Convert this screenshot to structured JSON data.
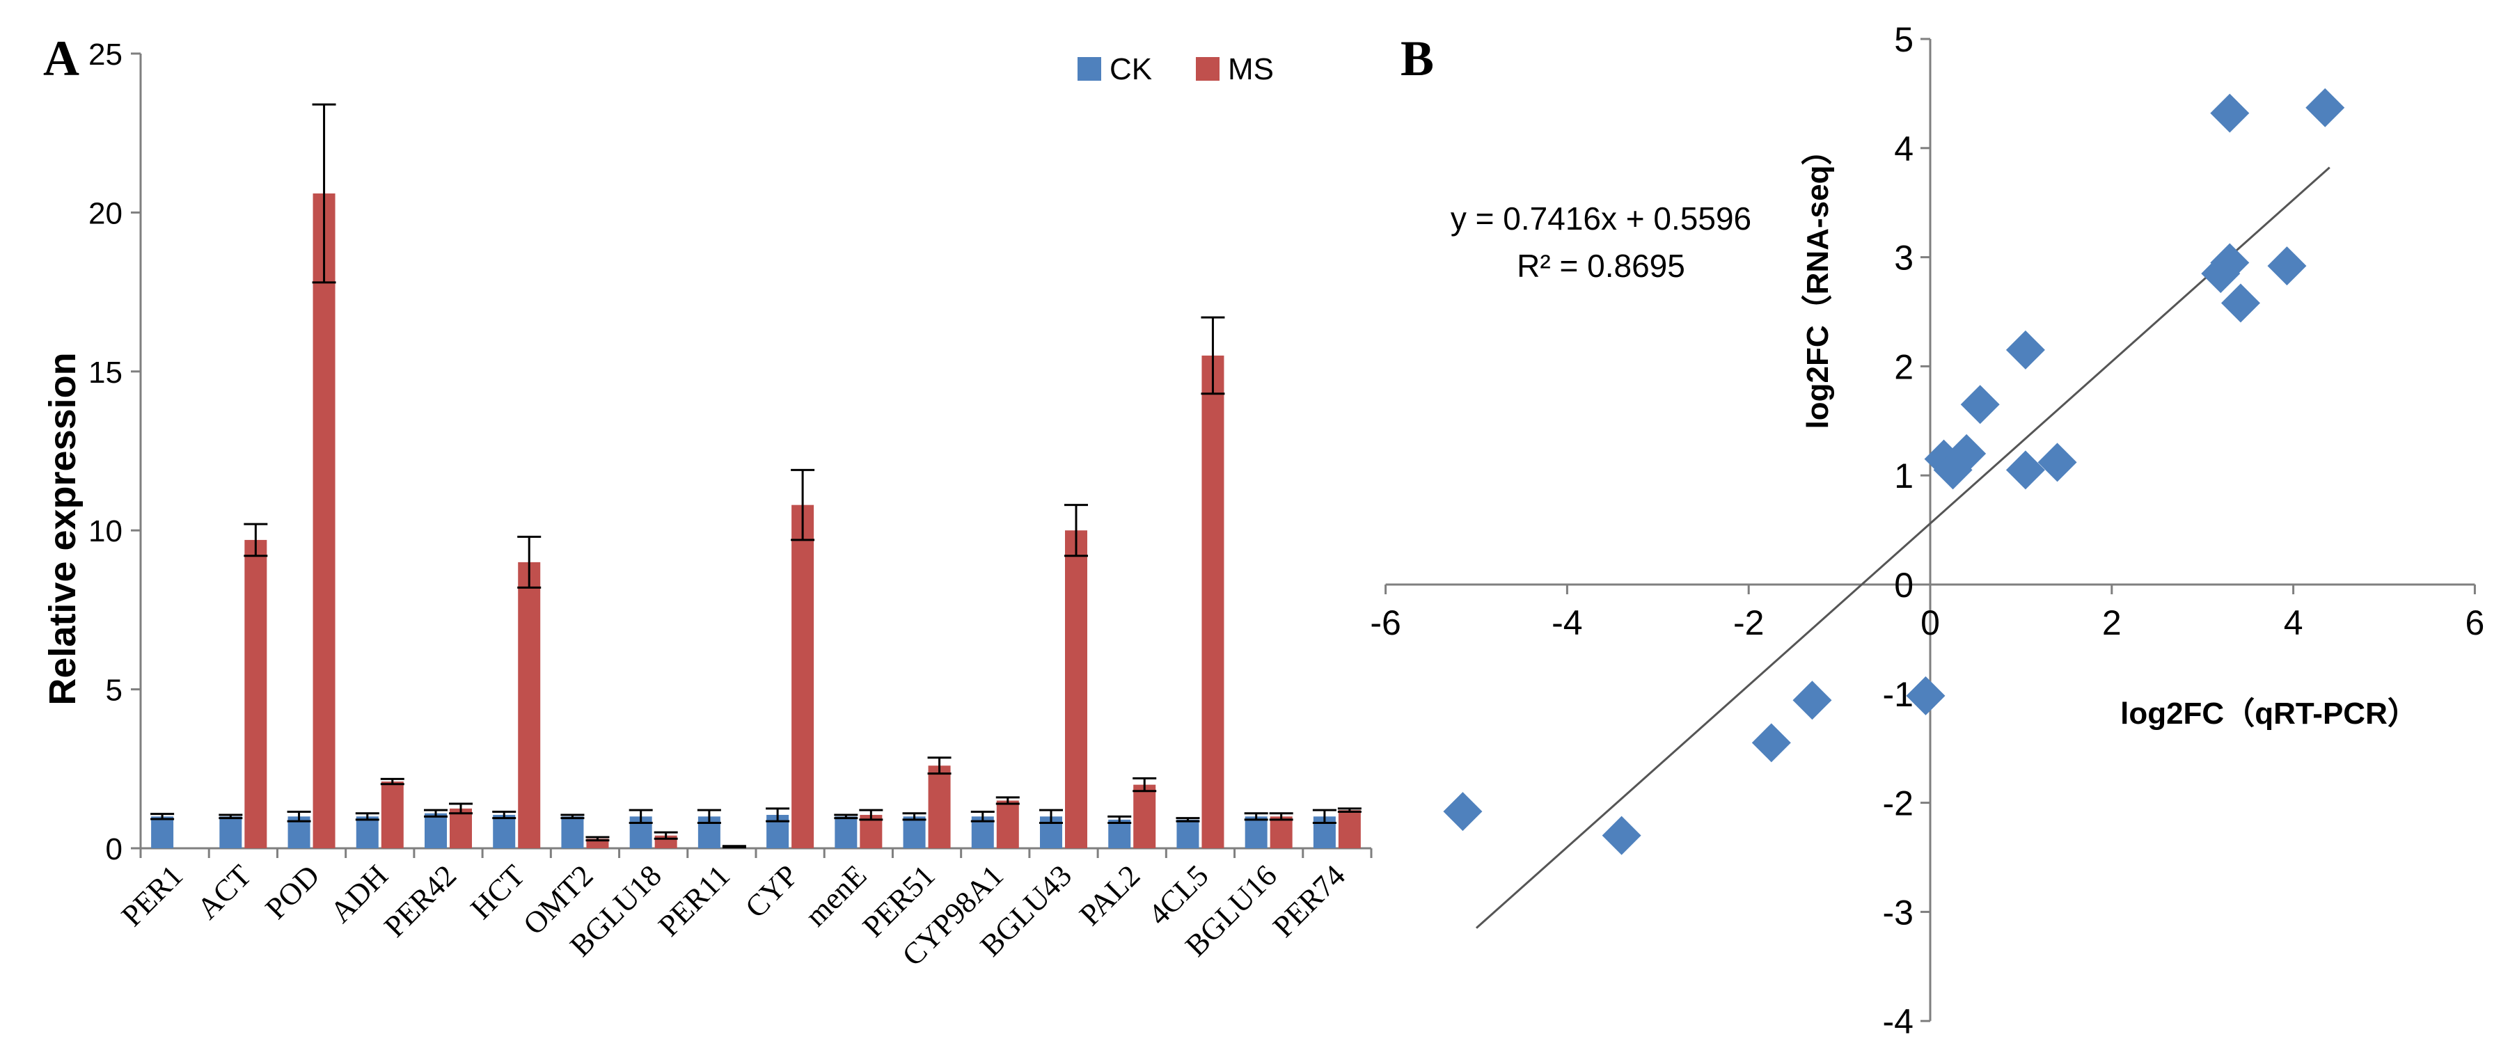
{
  "panel_labels": {
    "a": "A",
    "b": "B"
  },
  "colors": {
    "ck": "#4f81bd",
    "ms": "#c0504d",
    "scatter": "#4f81bd"
  },
  "chart_data": [
    {
      "type": "bar",
      "panel": "A",
      "ylabel": "Relative expression",
      "xlabel": "",
      "ylim": [
        0,
        25
      ],
      "yticks": [
        0,
        5,
        10,
        15,
        20,
        25
      ],
      "legend": "top-right",
      "categories": [
        "PER1",
        "ACT",
        "POD",
        "ADH",
        "PER42",
        "HCT",
        "OMT2",
        "BGLU18",
        "PER11",
        "CYP",
        "menE",
        "PER51",
        "CYP98A1",
        "BGLU43",
        "PAL2",
        "4CL5",
        "BGLU16",
        "PER74"
      ],
      "series": [
        {
          "name": "CK",
          "color": "#4f81bd",
          "values": [
            1.0,
            1.0,
            1.0,
            1.0,
            1.1,
            1.05,
            1.0,
            1.0,
            1.0,
            1.05,
            1.0,
            1.0,
            1.0,
            1.0,
            0.9,
            0.9,
            1.0,
            1.0
          ],
          "errors": [
            0.08,
            0.05,
            0.15,
            0.1,
            0.1,
            0.1,
            0.05,
            0.2,
            0.2,
            0.2,
            0.05,
            0.1,
            0.15,
            0.2,
            0.1,
            0.05,
            0.1,
            0.2
          ]
        },
        {
          "name": "MS",
          "color": "#c0504d",
          "values": [
            0.0,
            9.7,
            20.6,
            2.1,
            1.25,
            9.0,
            0.3,
            0.4,
            0.05,
            10.8,
            1.05,
            2.6,
            1.5,
            10.0,
            2.0,
            15.5,
            1.0,
            1.2
          ],
          "errors": [
            0.0,
            0.5,
            2.8,
            0.08,
            0.15,
            0.8,
            0.05,
            0.1,
            0.02,
            1.1,
            0.15,
            0.25,
            0.1,
            0.8,
            0.2,
            1.2,
            0.1,
            0.05
          ]
        }
      ]
    },
    {
      "type": "scatter",
      "panel": "B",
      "xlabel": "log2FC（qRT-PCR）",
      "ylabel": "log2FC（RNA-seq）",
      "xlim": [
        -6,
        6
      ],
      "ylim": [
        -4,
        5
      ],
      "xticks": [
        -6,
        -4,
        -2,
        0,
        2,
        4,
        6
      ],
      "yticks": [
        -4,
        -3,
        -2,
        -1,
        0,
        1,
        2,
        3,
        4,
        5
      ],
      "equation": "y = 0.7416x + 0.5596",
      "r_squared": "R² = 0.8695",
      "trendline": {
        "slope": 0.7416,
        "intercept": 0.5596,
        "x_range": [
          -5.0,
          4.4
        ]
      },
      "points": [
        {
          "x": -5.15,
          "y": -2.08
        },
        {
          "x": -3.4,
          "y": -2.3
        },
        {
          "x": -1.75,
          "y": -1.45
        },
        {
          "x": -1.3,
          "y": -1.06
        },
        {
          "x": -0.05,
          "y": -1.02
        },
        {
          "x": 0.15,
          "y": 1.15
        },
        {
          "x": 0.25,
          "y": 1.05
        },
        {
          "x": 0.4,
          "y": 1.2
        },
        {
          "x": 0.55,
          "y": 1.65
        },
        {
          "x": 1.05,
          "y": 2.15
        },
        {
          "x": 1.05,
          "y": 1.05
        },
        {
          "x": 1.4,
          "y": 1.12
        },
        {
          "x": 3.2,
          "y": 2.85
        },
        {
          "x": 3.3,
          "y": 2.95
        },
        {
          "x": 3.42,
          "y": 2.58
        },
        {
          "x": 3.93,
          "y": 2.92
        },
        {
          "x": 3.3,
          "y": 4.32
        },
        {
          "x": 4.35,
          "y": 4.37
        }
      ]
    }
  ]
}
